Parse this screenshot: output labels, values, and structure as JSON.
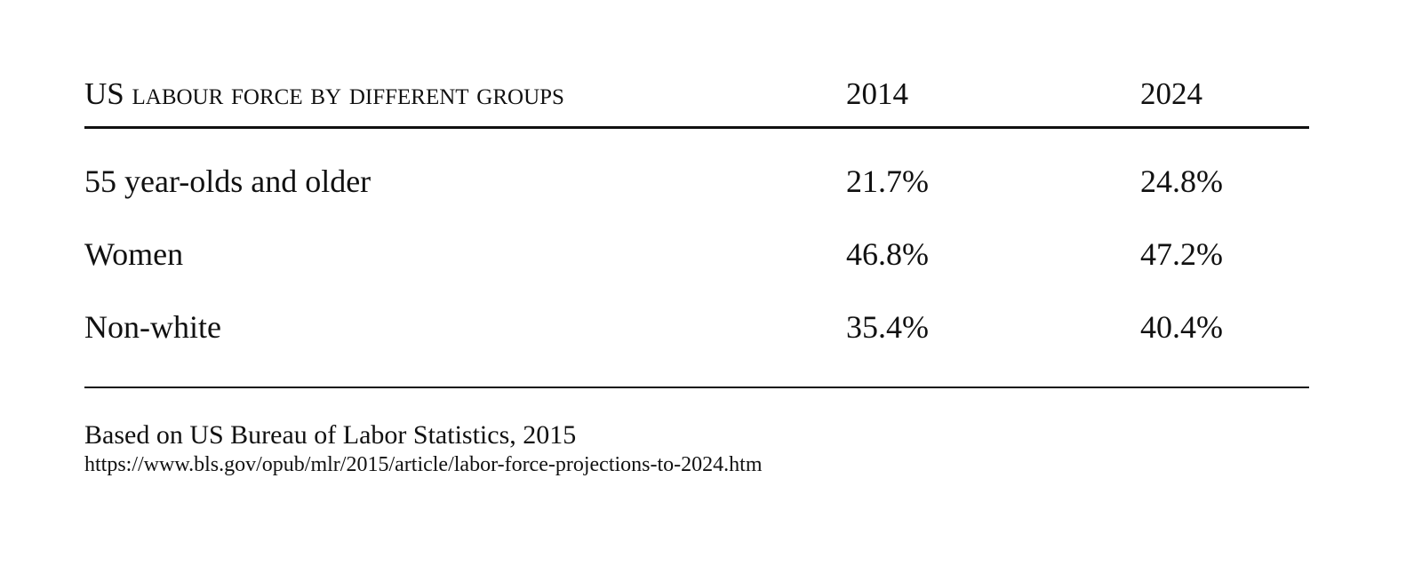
{
  "table": {
    "header": [
      "US labour force by different groups",
      "2014",
      "2024"
    ],
    "rows": [
      [
        "55 year-olds and older",
        "21.7%",
        "24.8%"
      ],
      [
        "Women",
        "46.8%",
        "47.2%"
      ],
      [
        "Non-white",
        "35.4%",
        "40.4%"
      ]
    ]
  },
  "footer": {
    "source": "Based on US Bureau of Labor Statistics, 2015",
    "url": "https://www.bls.gov/opub/mlr/2015/article/labor-force-projections-to-2024.htm"
  }
}
